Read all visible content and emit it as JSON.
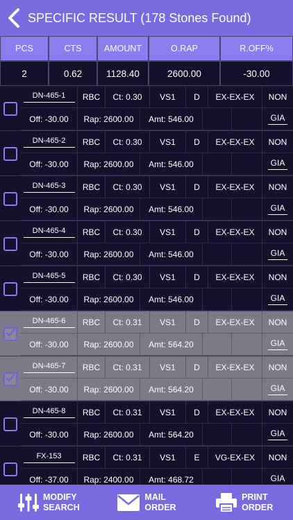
{
  "header": {
    "title": "SPECIFIC RESULT (178 Stones Found)"
  },
  "summary": {
    "headers": [
      "PCS",
      "CTS",
      "AMOUNT",
      "O.RAP",
      "R.OFF%"
    ],
    "values": [
      "2",
      "0.62",
      "1128.40",
      "2600.00",
      "-30.00"
    ]
  },
  "rows": [
    {
      "id": "DN-465-1",
      "shape": "RBC",
      "ct": "Ct: 0.30",
      "clarity": "VS1",
      "color": "D",
      "cut": "EX-EX-EX",
      "fl": "NON",
      "off": "Off: -30.00",
      "rap": "Rap: 2600.00",
      "amt": "Amt: 546.00",
      "lab": "GIA",
      "selected": false
    },
    {
      "id": "DN-465-2",
      "shape": "RBC",
      "ct": "Ct: 0.30",
      "clarity": "VS1",
      "color": "D",
      "cut": "EX-EX-EX",
      "fl": "NON",
      "off": "Off: -30.00",
      "rap": "Rap: 2600.00",
      "amt": "Amt: 546.00",
      "lab": "GIA",
      "selected": false
    },
    {
      "id": "DN-465-3",
      "shape": "RBC",
      "ct": "Ct: 0.30",
      "clarity": "VS1",
      "color": "D",
      "cut": "EX-EX-EX",
      "fl": "NON",
      "off": "Off: -30.00",
      "rap": "Rap: 2600.00",
      "amt": "Amt: 546.00",
      "lab": "GIA",
      "selected": false
    },
    {
      "id": "DN-465-4",
      "shape": "RBC",
      "ct": "Ct: 0.30",
      "clarity": "VS1",
      "color": "D",
      "cut": "EX-EX-EX",
      "fl": "NON",
      "off": "Off: -30.00",
      "rap": "Rap: 2600.00",
      "amt": "Amt: 546.00",
      "lab": "GIA",
      "selected": false
    },
    {
      "id": "DN-465-5",
      "shape": "RBC",
      "ct": "Ct: 0.30",
      "clarity": "VS1",
      "color": "D",
      "cut": "EX-EX-EX",
      "fl": "NON",
      "off": "Off: -30.00",
      "rap": "Rap: 2600.00",
      "amt": "Amt: 546.00",
      "lab": "GIA",
      "selected": false
    },
    {
      "id": "DN-465-6",
      "shape": "RBC",
      "ct": "Ct: 0.31",
      "clarity": "VS1",
      "color": "D",
      "cut": "EX-EX-EX",
      "fl": "NON",
      "off": "Off: -30.00",
      "rap": "Rap: 2600.00",
      "amt": "Amt: 564.20",
      "lab": "GIA",
      "selected": true
    },
    {
      "id": "DN-465-7",
      "shape": "RBC",
      "ct": "Ct: 0.31",
      "clarity": "VS1",
      "color": "D",
      "cut": "EX-EX-EX",
      "fl": "NON",
      "off": "Off: -30.00",
      "rap": "Rap: 2600.00",
      "amt": "Amt: 564.20",
      "lab": "GIA",
      "selected": true
    },
    {
      "id": "DN-465-8",
      "shape": "RBC",
      "ct": "Ct: 0.31",
      "clarity": "VS1",
      "color": "D",
      "cut": "EX-EX-EX",
      "fl": "NON",
      "off": "Off: -30.00",
      "rap": "Rap: 2600.00",
      "amt": "Amt: 564.20",
      "lab": "GIA",
      "selected": false
    },
    {
      "id": "FX-153",
      "shape": "RBC",
      "ct": "Ct: 0.31",
      "clarity": "VS1",
      "color": "E",
      "cut": "VG-EX-EX",
      "fl": "NON",
      "off": "Off: -37.00",
      "rap": "Rap: 2400.00",
      "amt": "Amt: 468.72",
      "lab": "GIA",
      "selected": false
    }
  ],
  "bottom": {
    "modify_line1": "MODIFY",
    "modify_line2": "SEARCH",
    "mail_line1": "MAIL",
    "mail_line2": "ORDER",
    "print_line1": "PRINT",
    "print_line2": "ORDER"
  },
  "colors": {
    "accent": "#7a6ae0",
    "background": "#15112a",
    "selected_row": "#7b7a86"
  },
  "icons": {
    "back": "back-chevron-icon",
    "modify": "sliders-icon",
    "mail": "envelope-icon",
    "print": "printer-icon",
    "check": "checkmark-icon"
  }
}
